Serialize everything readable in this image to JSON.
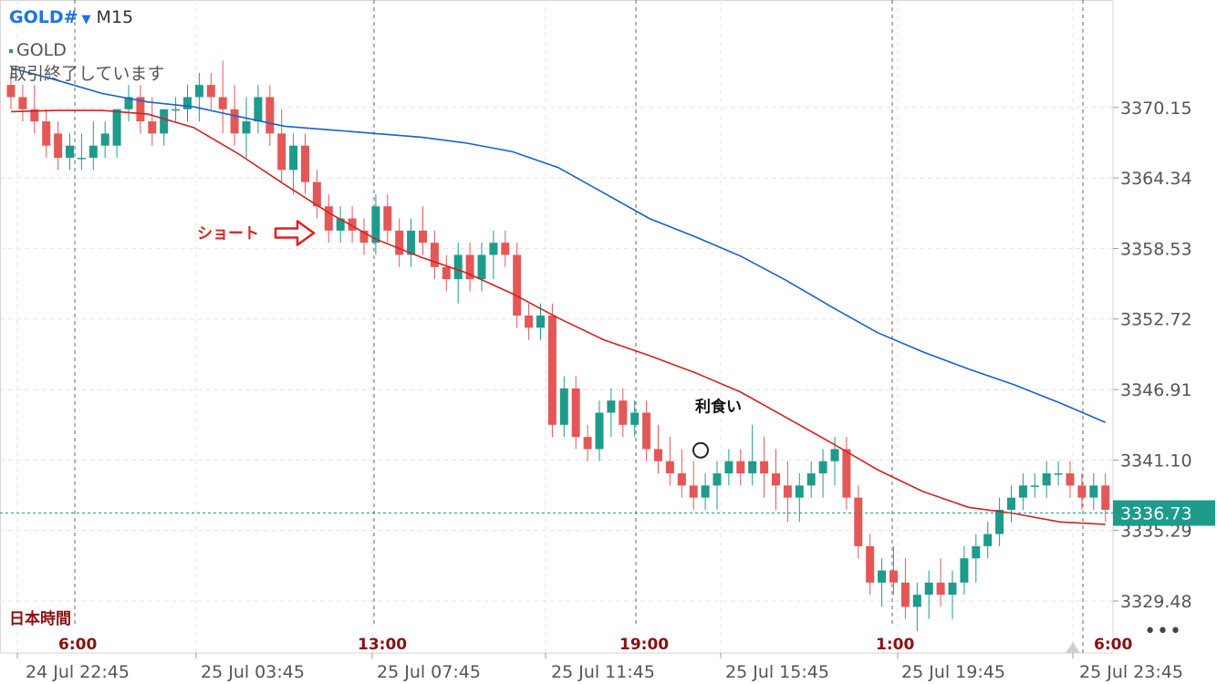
{
  "header": {
    "symbol": "GOLD#",
    "timeframe": "M15",
    "dropdown_icon": "triangle-down-icon",
    "name": "GOLD",
    "status": "取引終了しています"
  },
  "more_icon": "more-horizontal-icon",
  "more_glyph": "•••",
  "chart_data": {
    "type": "candlestick",
    "symbol": "GOLD#",
    "timeframe": "M15",
    "y_ticks": [
      "3370.15",
      "3364.34",
      "3358.53",
      "3352.72",
      "3346.91",
      "3341.10",
      "3335.29",
      "3329.48"
    ],
    "ylim": [
      3325.2,
      3379.0
    ],
    "current_price": 3336.73,
    "current_price_label": "3336.73",
    "x_ticks_server": [
      "24 Jul 22:45",
      "25 Jul 03:45",
      "25 Jul 07:45",
      "25 Jul 11:45",
      "25 Jul 15:45",
      "25 Jul 19:45",
      "25 Jul 23:45"
    ],
    "x_ticks_local": [
      "6:00",
      "13:00",
      "19:00",
      "1:00",
      "6:00"
    ],
    "local_time_label": "日本時間",
    "annotations": [
      {
        "text": "ショート",
        "type": "arrow-right",
        "price": 3359.8
      },
      {
        "text": "利食い",
        "type": "circle",
        "price": 3341.9
      }
    ],
    "series": [
      {
        "name": "",
        "type": "moving-average",
        "color": "#d42020",
        "values": [
          3369.8,
          3369.9,
          3369.9,
          3369.6,
          3368.5,
          3366.3,
          3363.8,
          3361.4,
          3359.3,
          3357.8,
          3356.5,
          3354.8,
          3352.8,
          3351.0,
          3349.7,
          3348.3,
          3346.7,
          3344.6,
          3342.5,
          3340.3,
          3338.5,
          3337.2,
          3336.7,
          3336.0,
          3335.8
        ]
      },
      {
        "name": "",
        "type": "moving-average",
        "color": "#1a5fd0",
        "values": [
          3373.4,
          3372.4,
          3371.3,
          3370.6,
          3370.2,
          3369.4,
          3368.6,
          3368.3,
          3368.0,
          3367.7,
          3367.2,
          3366.5,
          3365.2,
          3363.1,
          3361.0,
          3359.5,
          3357.9,
          3355.9,
          3353.7,
          3351.6,
          3350.0,
          3348.6,
          3347.3,
          3345.8,
          3344.2
        ]
      }
    ],
    "candles": [
      [
        3372,
        3373,
        3370,
        3371
      ],
      [
        3371,
        3372,
        3369,
        3370
      ],
      [
        3370,
        3372,
        3368,
        3369
      ],
      [
        3369,
        3370,
        3366,
        3367
      ],
      [
        3368,
        3369,
        3365,
        3366
      ],
      [
        3366,
        3368,
        3365,
        3367
      ],
      [
        3366,
        3368,
        3365,
        3366
      ],
      [
        3366,
        3369,
        3365,
        3367
      ],
      [
        3367,
        3369,
        3366,
        3368
      ],
      [
        3367,
        3370,
        3366,
        3370
      ],
      [
        3370,
        3372,
        3369,
        3371
      ],
      [
        3371,
        3372,
        3368,
        3369
      ],
      [
        3369,
        3371,
        3367,
        3368
      ],
      [
        3368,
        3370,
        3367,
        3370
      ],
      [
        3370,
        3371,
        3369,
        3370
      ],
      [
        3370,
        3372,
        3369,
        3371
      ],
      [
        3371,
        3373,
        3369,
        3372
      ],
      [
        3372,
        3373,
        3370,
        3371
      ],
      [
        3371,
        3374,
        3368,
        3370
      ],
      [
        3370,
        3372,
        3367,
        3368
      ],
      [
        3368,
        3371,
        3366,
        3369
      ],
      [
        3369,
        3372,
        3368,
        3371
      ],
      [
        3371,
        3372,
        3367,
        3368
      ],
      [
        3368,
        3370,
        3364,
        3365
      ],
      [
        3365,
        3368,
        3363,
        3367
      ],
      [
        3367,
        3368,
        3363,
        3364
      ],
      [
        3364,
        3365,
        3361,
        3362
      ],
      [
        3362,
        3363,
        3359,
        3360
      ],
      [
        3360,
        3362,
        3359,
        3361
      ],
      [
        3361,
        3362,
        3359,
        3360
      ],
      [
        3360,
        3361,
        3358,
        3359
      ],
      [
        3359,
        3363,
        3358,
        3362
      ],
      [
        3362,
        3363,
        3359,
        3360
      ],
      [
        3360,
        3361,
        3357,
        3358
      ],
      [
        3358,
        3361,
        3357,
        3360
      ],
      [
        3360,
        3362,
        3358,
        3359
      ],
      [
        3359,
        3360,
        3356,
        3357
      ],
      [
        3357,
        3358,
        3355,
        3356
      ],
      [
        3356,
        3359,
        3354,
        3358
      ],
      [
        3358,
        3359,
        3355,
        3356
      ],
      [
        3356,
        3359,
        3355,
        3358
      ],
      [
        3358,
        3360,
        3356,
        3359
      ],
      [
        3359,
        3360,
        3357,
        3358
      ],
      [
        3358,
        3359,
        3352,
        3353
      ],
      [
        3353,
        3354,
        3351,
        3352
      ],
      [
        3352,
        3354,
        3351,
        3353
      ],
      [
        3353,
        3354,
        3343,
        3344
      ],
      [
        3344,
        3348,
        3343,
        3347
      ],
      [
        3347,
        3348,
        3342,
        3343
      ],
      [
        3343,
        3344,
        3341,
        3342
      ],
      [
        3342,
        3346,
        3341,
        3345
      ],
      [
        3345,
        3347,
        3343,
        3346
      ],
      [
        3346,
        3347,
        3343,
        3344
      ],
      [
        3344,
        3346,
        3343,
        3345
      ],
      [
        3345,
        3346,
        3341,
        3342
      ],
      [
        3342,
        3344,
        3340,
        3341
      ],
      [
        3341,
        3343,
        3339,
        3340
      ],
      [
        3340,
        3342,
        3338,
        3339
      ],
      [
        3339,
        3341,
        3337,
        3338
      ],
      [
        3338,
        3340,
        3337,
        3339
      ],
      [
        3339,
        3341,
        3337,
        3340
      ],
      [
        3340,
        3342,
        3339,
        3341
      ],
      [
        3341,
        3342,
        3339,
        3340
      ],
      [
        3340,
        3344,
        3339,
        3341
      ],
      [
        3341,
        3343,
        3338,
        3340
      ],
      [
        3340,
        3342,
        3337,
        3339
      ],
      [
        3339,
        3341,
        3336,
        3338
      ],
      [
        3338,
        3340,
        3336,
        3339
      ],
      [
        3339,
        3341,
        3338,
        3340
      ],
      [
        3340,
        3342,
        3338,
        3341
      ],
      [
        3341,
        3343,
        3339,
        3342
      ],
      [
        3342,
        3343,
        3337,
        3338
      ],
      [
        3338,
        3339,
        3333,
        3334
      ],
      [
        3334,
        3335,
        3330,
        3331
      ],
      [
        3331,
        3333,
        3329,
        3332
      ],
      [
        3332,
        3334,
        3330,
        3331
      ],
      [
        3331,
        3333,
        3328,
        3329
      ],
      [
        3329,
        3331,
        3327,
        3330
      ],
      [
        3330,
        3332,
        3328,
        3331
      ],
      [
        3331,
        3333,
        3329,
        3330
      ],
      [
        3330,
        3332,
        3328,
        3331
      ],
      [
        3331,
        3334,
        3330,
        3333
      ],
      [
        3333,
        3335,
        3331,
        3334
      ],
      [
        3334,
        3336,
        3333,
        3335
      ],
      [
        3335,
        3338,
        3334,
        3337
      ],
      [
        3337,
        3339,
        3336,
        3338
      ],
      [
        3338,
        3340,
        3337,
        3339
      ],
      [
        3339,
        3340,
        3338,
        3339
      ],
      [
        3339,
        3341,
        3338,
        3340
      ],
      [
        3340,
        3341,
        3339,
        3340
      ],
      [
        3340,
        3341,
        3338,
        3339
      ],
      [
        3339,
        3340,
        3337,
        3338
      ],
      [
        3338,
        3340,
        3337,
        3339
      ],
      [
        3339,
        3340,
        3336,
        3337
      ]
    ]
  }
}
